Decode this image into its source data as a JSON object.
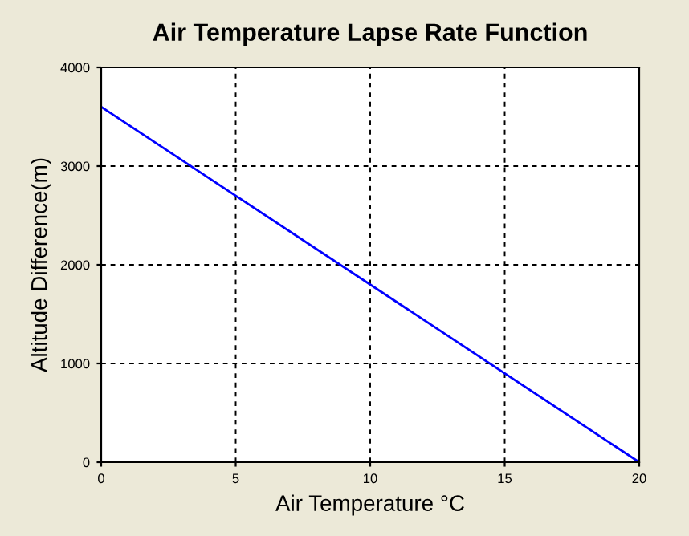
{
  "chart_data": {
    "type": "line",
    "title": "Air Temperature Lapse Rate Function",
    "xlabel": "Air Temperature °C",
    "ylabel": "Altitude Difference(m)",
    "x": [
      0,
      20
    ],
    "series": [
      {
        "color": "#0000ff",
        "values": [
          3600,
          0
        ]
      }
    ],
    "xlim": [
      0,
      20
    ],
    "xticks": [
      0,
      5,
      10,
      15,
      20
    ],
    "ylim": [
      0,
      4000
    ],
    "yticks": [
      0,
      1000,
      2000,
      3000,
      4000
    ],
    "grid": true,
    "marker": "none",
    "line_style": "solid"
  }
}
